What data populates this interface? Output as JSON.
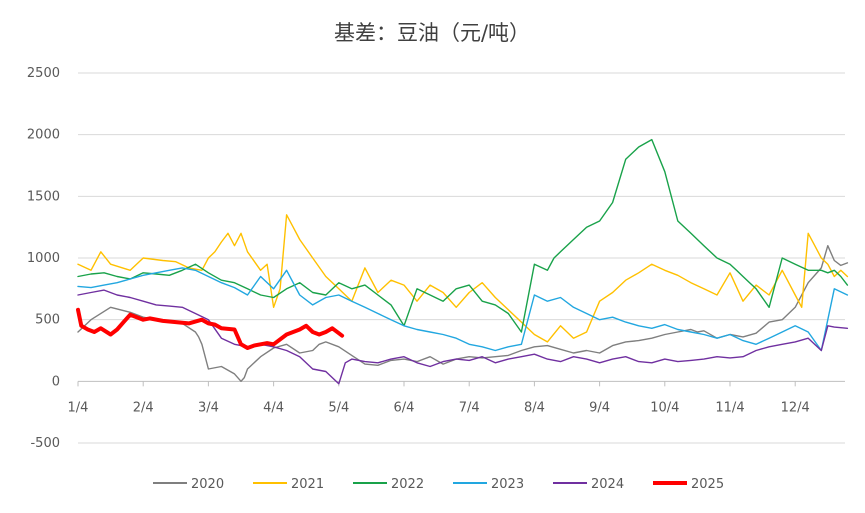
{
  "chart_data": {
    "type": "line",
    "title": "基差：豆油（元/吨）",
    "xlabel": "",
    "ylabel": "",
    "ylim": [
      -500,
      2500
    ],
    "yticks": [
      "-500",
      "0",
      "500",
      "1000",
      "1500",
      "2000",
      "2500"
    ],
    "yticks_values": [
      -500,
      0,
      500,
      1000,
      1500,
      2000,
      2500
    ],
    "xlim": [
      0,
      12
    ],
    "xticks": [
      "1/4",
      "2/4",
      "3/4",
      "4/4",
      "5/4",
      "6/4",
      "7/4",
      "8/4",
      "9/4",
      "10/4",
      "11/4",
      "12/4"
    ],
    "grid": true,
    "legend_position": "bottom",
    "series": [
      {
        "name": "2020",
        "color": "#7f7f7f",
        "width": 1.4,
        "x": [
          0,
          0.2,
          0.5,
          0.8,
          1.0,
          1.3,
          1.6,
          1.8,
          1.85,
          1.9,
          2.0,
          2.2,
          2.4,
          2.5,
          2.55,
          2.6,
          2.8,
          3.0,
          3.2,
          3.4,
          3.6,
          3.7,
          3.8,
          4.0,
          4.2,
          4.4,
          4.6,
          4.8,
          5.0,
          5.2,
          5.4,
          5.6,
          5.8,
          6.0,
          6.2,
          6.4,
          6.6,
          6.8,
          7.0,
          7.2,
          7.4,
          7.6,
          7.8,
          8.0,
          8.2,
          8.4,
          8.6,
          8.8,
          9.0,
          9.2,
          9.4,
          9.5,
          9.6,
          9.8,
          10.0,
          10.2,
          10.4,
          10.6,
          10.8,
          11.0,
          11.2,
          11.4,
          11.5,
          11.6,
          11.7,
          11.8
        ],
        "values": [
          400,
          500,
          600,
          560,
          520,
          490,
          470,
          400,
          360,
          300,
          100,
          120,
          60,
          0,
          30,
          100,
          200,
          270,
          300,
          230,
          250,
          300,
          320,
          280,
          210,
          140,
          130,
          170,
          180,
          160,
          200,
          140,
          180,
          200,
          190,
          200,
          210,
          250,
          280,
          290,
          260,
          230,
          250,
          230,
          290,
          320,
          330,
          350,
          380,
          400,
          420,
          400,
          410,
          350,
          380,
          360,
          390,
          480,
          500,
          600,
          800,
          920,
          1100,
          980,
          940,
          960
        ]
      },
      {
        "name": "2021",
        "color": "#ffc000",
        "width": 1.4,
        "x": [
          0,
          0.2,
          0.35,
          0.5,
          0.8,
          1.0,
          1.3,
          1.5,
          1.7,
          1.9,
          2.0,
          2.1,
          2.2,
          2.3,
          2.4,
          2.5,
          2.6,
          2.8,
          2.9,
          3.0,
          3.1,
          3.2,
          3.3,
          3.4,
          3.6,
          3.8,
          4.0,
          4.2,
          4.4,
          4.6,
          4.8,
          5.0,
          5.2,
          5.4,
          5.6,
          5.8,
          6.0,
          6.2,
          6.4,
          6.6,
          6.8,
          7.0,
          7.2,
          7.4,
          7.6,
          7.8,
          8.0,
          8.2,
          8.4,
          8.6,
          8.8,
          9.0,
          9.2,
          9.4,
          9.6,
          9.8,
          10.0,
          10.2,
          10.4,
          10.6,
          10.8,
          11.0,
          11.1,
          11.2,
          11.3,
          11.4,
          11.5,
          11.6,
          11.7,
          11.8
        ],
        "values": [
          950,
          900,
          1050,
          950,
          900,
          1000,
          980,
          970,
          920,
          900,
          1000,
          1050,
          1130,
          1200,
          1100,
          1200,
          1050,
          900,
          950,
          600,
          750,
          1350,
          1250,
          1150,
          1000,
          850,
          750,
          650,
          920,
          720,
          820,
          780,
          650,
          780,
          720,
          600,
          720,
          800,
          680,
          580,
          480,
          380,
          320,
          450,
          350,
          400,
          650,
          720,
          820,
          880,
          950,
          900,
          860,
          800,
          750,
          700,
          880,
          650,
          780,
          700,
          900,
          700,
          600,
          1200,
          1100,
          1000,
          950,
          850,
          900,
          850
        ]
      },
      {
        "name": "2022",
        "color": "#19a24a",
        "width": 1.4,
        "x": [
          0,
          0.2,
          0.4,
          0.6,
          0.8,
          1.0,
          1.2,
          1.4,
          1.6,
          1.8,
          2.0,
          2.2,
          2.4,
          2.6,
          2.8,
          3.0,
          3.2,
          3.4,
          3.6,
          3.8,
          4.0,
          4.2,
          4.4,
          4.6,
          4.8,
          5.0,
          5.2,
          5.4,
          5.6,
          5.8,
          6.0,
          6.2,
          6.4,
          6.6,
          6.8,
          7.0,
          7.2,
          7.3,
          7.4,
          7.6,
          7.8,
          8.0,
          8.2,
          8.4,
          8.6,
          8.8,
          9.0,
          9.2,
          9.4,
          9.6,
          9.8,
          10.0,
          10.1,
          10.2,
          10.3,
          10.4,
          10.6,
          10.8,
          11.0,
          11.2,
          11.4,
          11.5,
          11.6,
          11.7,
          11.8
        ],
        "values": [
          850,
          870,
          880,
          850,
          830,
          880,
          870,
          860,
          900,
          950,
          880,
          820,
          800,
          750,
          700,
          680,
          750,
          800,
          720,
          700,
          800,
          750,
          780,
          700,
          620,
          450,
          750,
          700,
          650,
          750,
          780,
          650,
          620,
          550,
          400,
          950,
          900,
          1000,
          1050,
          1150,
          1250,
          1300,
          1450,
          1800,
          1900,
          1960,
          1700,
          1300,
          1200,
          1100,
          1000,
          950,
          900,
          850,
          800,
          750,
          600,
          1000,
          950,
          900,
          900,
          880,
          900,
          850,
          780
        ]
      },
      {
        "name": "2023",
        "color": "#22a7e0",
        "width": 1.4,
        "x": [
          0,
          0.2,
          0.4,
          0.6,
          0.8,
          1.0,
          1.2,
          1.4,
          1.6,
          1.8,
          2.0,
          2.2,
          2.4,
          2.6,
          2.8,
          3.0,
          3.2,
          3.4,
          3.6,
          3.8,
          4.0,
          4.2,
          4.4,
          4.6,
          4.8,
          5.0,
          5.2,
          5.4,
          5.6,
          5.8,
          6.0,
          6.2,
          6.4,
          6.6,
          6.8,
          7.0,
          7.2,
          7.4,
          7.6,
          7.8,
          8.0,
          8.2,
          8.4,
          8.6,
          8.8,
          9.0,
          9.2,
          9.4,
          9.6,
          9.8,
          10.0,
          10.2,
          10.4,
          10.6,
          10.8,
          11.0,
          11.2,
          11.4,
          11.6,
          11.8
        ],
        "values": [
          770,
          760,
          780,
          800,
          830,
          860,
          880,
          900,
          920,
          900,
          850,
          800,
          760,
          700,
          850,
          750,
          900,
          700,
          620,
          680,
          700,
          650,
          600,
          550,
          500,
          450,
          420,
          400,
          380,
          350,
          300,
          280,
          250,
          280,
          300,
          700,
          650,
          680,
          600,
          550,
          500,
          520,
          480,
          450,
          430,
          460,
          420,
          400,
          380,
          350,
          380,
          330,
          300,
          350,
          400,
          450,
          400,
          250,
          750,
          700
        ]
      },
      {
        "name": "2024",
        "color": "#7030a0",
        "width": 1.4,
        "x": [
          0,
          0.2,
          0.4,
          0.6,
          0.8,
          1.0,
          1.2,
          1.4,
          1.6,
          1.8,
          2.0,
          2.2,
          2.4,
          2.6,
          2.8,
          3.0,
          3.2,
          3.4,
          3.6,
          3.8,
          4.0,
          4.1,
          4.2,
          4.4,
          4.6,
          4.8,
          5.0,
          5.2,
          5.4,
          5.6,
          5.8,
          6.0,
          6.2,
          6.4,
          6.6,
          6.8,
          7.0,
          7.2,
          7.4,
          7.6,
          7.8,
          8.0,
          8.2,
          8.4,
          8.6,
          8.8,
          9.0,
          9.2,
          9.4,
          9.6,
          9.8,
          10.0,
          10.2,
          10.4,
          10.6,
          10.8,
          11.0,
          11.2,
          11.4,
          11.5,
          11.6,
          11.8
        ],
        "values": [
          700,
          720,
          740,
          700,
          680,
          650,
          620,
          610,
          600,
          550,
          500,
          350,
          300,
          280,
          300,
          280,
          250,
          200,
          100,
          80,
          -20,
          150,
          180,
          160,
          150,
          180,
          200,
          150,
          120,
          160,
          180,
          170,
          200,
          150,
          180,
          200,
          220,
          180,
          160,
          200,
          180,
          150,
          180,
          200,
          160,
          150,
          180,
          160,
          170,
          180,
          200,
          190,
          200,
          250,
          280,
          300,
          320,
          350,
          250,
          450,
          440,
          430
        ]
      },
      {
        "name": "2025",
        "color": "#ff0000",
        "width": 4,
        "x": [
          0,
          0.05,
          0.15,
          0.25,
          0.35,
          0.5,
          0.6,
          0.7,
          0.8,
          0.9,
          1.0,
          1.1,
          1.3,
          1.5,
          1.7,
          1.9,
          2.0,
          2.1,
          2.2,
          2.4,
          2.5,
          2.6,
          2.7,
          2.8,
          2.9,
          3.0,
          3.2,
          3.4,
          3.5,
          3.6,
          3.7,
          3.8,
          3.9,
          4.0,
          4.05
        ],
        "values": [
          580,
          450,
          420,
          400,
          430,
          380,
          420,
          480,
          540,
          520,
          500,
          510,
          490,
          480,
          470,
          500,
          470,
          460,
          430,
          420,
          300,
          270,
          290,
          300,
          310,
          300,
          380,
          420,
          450,
          400,
          380,
          400,
          430,
          390,
          370
        ]
      }
    ]
  }
}
